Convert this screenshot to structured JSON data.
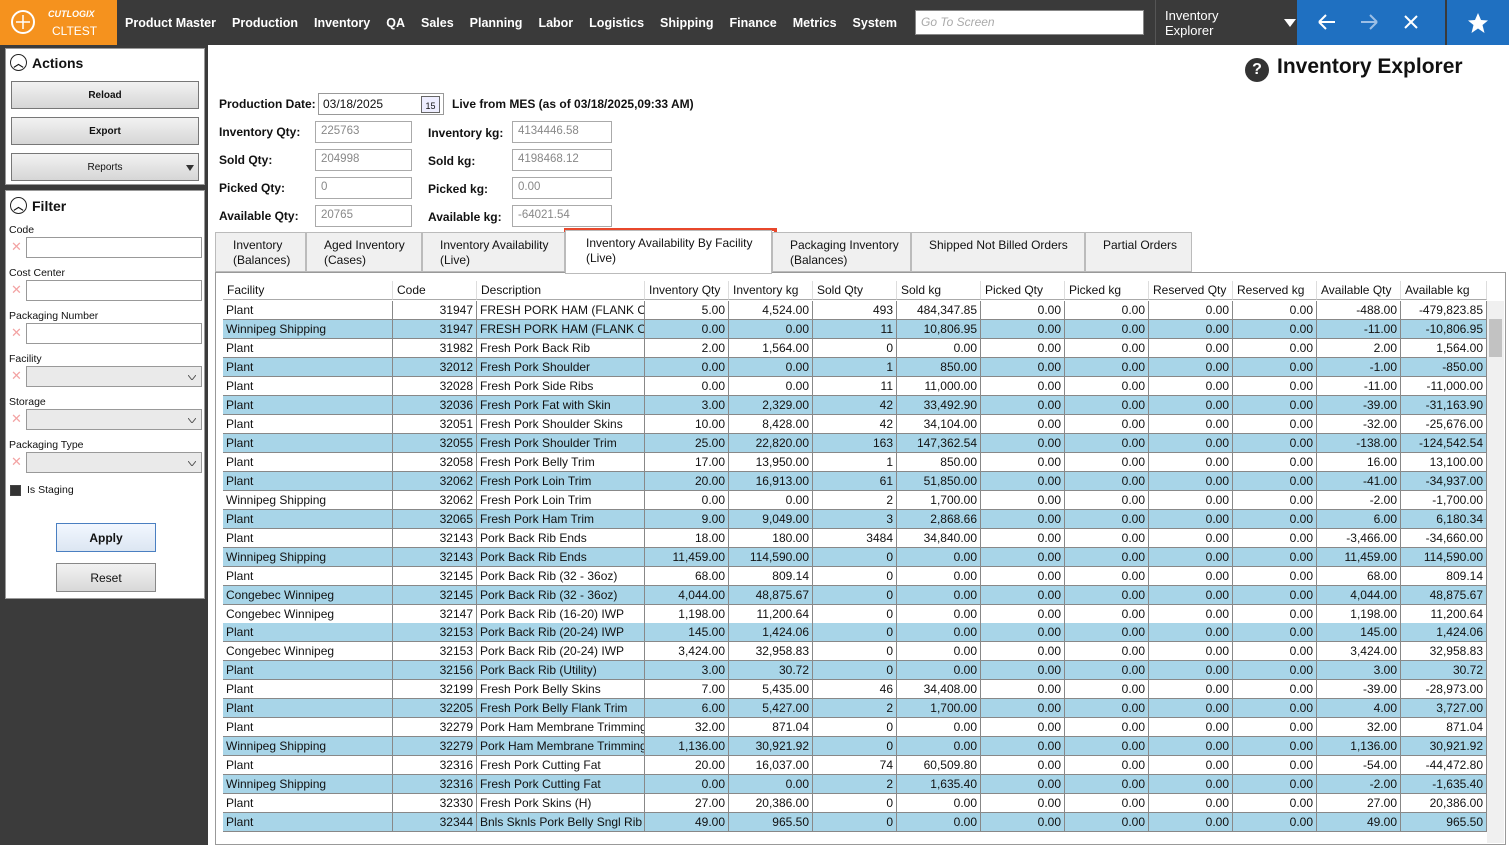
{
  "topbar": {
    "logo_brand": "CUTLOGIX",
    "logo_env": "CLTEST",
    "nav": [
      "Product Master",
      "Production",
      "Inventory",
      "QA",
      "Sales",
      "Planning",
      "Labor",
      "Logistics",
      "Shipping",
      "Finance",
      "Metrics",
      "System"
    ],
    "search_placeholder": "Go To Screen",
    "screen_select": "Inventory Explorer"
  },
  "sidebar": {
    "actions_title": "Actions",
    "buttons": [
      "Reload",
      "Export"
    ],
    "reports": "Reports",
    "filter_title": "Filter",
    "filters": [
      "Code",
      "Cost Center",
      "Packaging Number",
      "Facility",
      "Storage",
      "Packaging Type"
    ],
    "is_staging": "Is Staging",
    "apply": "Apply",
    "reset": "Reset"
  },
  "header": {
    "title": "Inventory Explorer",
    "help_icon": "?",
    "production_date_label": "Production Date:",
    "production_date": "03/18/2025",
    "calendar_icon": "15",
    "live_note": "Live from MES (as of 03/18/2025,09:33 AM)"
  },
  "summary": [
    {
      "label": "Inventory Qty:",
      "value": "225763",
      "label2": "Inventory kg:",
      "value2": "4134446.58"
    },
    {
      "label": "Sold Qty:",
      "value": "204998",
      "label2": "Sold kg:",
      "value2": "4198468.12"
    },
    {
      "label": "Picked Qty:",
      "value": "0",
      "label2": "Picked kg:",
      "value2": "0.00"
    },
    {
      "label": "Available Qty:",
      "value": "20765",
      "label2": "Available kg:",
      "value2": "-64021.54"
    }
  ],
  "tabs": [
    [
      "Inventory",
      "(Balances)"
    ],
    [
      "Aged Inventory",
      "(Cases)"
    ],
    [
      "Inventory Availability",
      "(Live)"
    ],
    [
      "Inventory Availability By Facility",
      "(Live)"
    ],
    [
      "Packaging Inventory",
      "(Balances)"
    ],
    [
      "Shipped Not Billed Orders"
    ],
    [
      "Partial Orders"
    ]
  ],
  "table": {
    "columns": [
      "Facility",
      "Code",
      "Description",
      "Inventory Qty",
      "Inventory kg",
      "Sold Qty",
      "Sold kg",
      "Picked Qty",
      "Picked kg",
      "Reserved Qty",
      "Reserved kg",
      "Available Qty",
      "Available kg"
    ],
    "rows": [
      [
        "Plant",
        "31947",
        "FRESH PORK HAM (FLANK ON",
        "5.00",
        "4,524.00",
        "493",
        "484,347.85",
        "0.00",
        "0.00",
        "0.00",
        "0.00",
        "-488.00",
        "-479,823.85"
      ],
      [
        "Winnipeg Shipping",
        "31947",
        "FRESH PORK HAM (FLANK ON",
        "0.00",
        "0.00",
        "11",
        "10,806.95",
        "0.00",
        "0.00",
        "0.00",
        "0.00",
        "-11.00",
        "-10,806.95"
      ],
      [
        "Plant",
        "31982",
        "Fresh Pork Back Rib",
        "2.00",
        "1,564.00",
        "0",
        "0.00",
        "0.00",
        "0.00",
        "0.00",
        "0.00",
        "2.00",
        "1,564.00"
      ],
      [
        "Plant",
        "32012",
        "Fresh Pork Shoulder",
        "0.00",
        "0.00",
        "1",
        "850.00",
        "0.00",
        "0.00",
        "0.00",
        "0.00",
        "-1.00",
        "-850.00"
      ],
      [
        "Plant",
        "32028",
        "Fresh Pork Side Ribs",
        "0.00",
        "0.00",
        "11",
        "11,000.00",
        "0.00",
        "0.00",
        "0.00",
        "0.00",
        "-11.00",
        "-11,000.00"
      ],
      [
        "Plant",
        "32036",
        "Fresh Pork Fat with Skin",
        "3.00",
        "2,329.00",
        "42",
        "33,492.90",
        "0.00",
        "0.00",
        "0.00",
        "0.00",
        "-39.00",
        "-31,163.90"
      ],
      [
        "Plant",
        "32051",
        "Fresh Pork Shoulder Skins",
        "10.00",
        "8,428.00",
        "42",
        "34,104.00",
        "0.00",
        "0.00",
        "0.00",
        "0.00",
        "-32.00",
        "-25,676.00"
      ],
      [
        "Plant",
        "32055",
        "Fresh Pork Shoulder Trim",
        "25.00",
        "22,820.00",
        "163",
        "147,362.54",
        "0.00",
        "0.00",
        "0.00",
        "0.00",
        "-138.00",
        "-124,542.54"
      ],
      [
        "Plant",
        "32058",
        "Fresh Pork Belly Trim",
        "17.00",
        "13,950.00",
        "1",
        "850.00",
        "0.00",
        "0.00",
        "0.00",
        "0.00",
        "16.00",
        "13,100.00"
      ],
      [
        "Plant",
        "32062",
        "Fresh Pork Loin Trim",
        "20.00",
        "16,913.00",
        "61",
        "51,850.00",
        "0.00",
        "0.00",
        "0.00",
        "0.00",
        "-41.00",
        "-34,937.00"
      ],
      [
        "Winnipeg Shipping",
        "32062",
        "Fresh Pork Loin Trim",
        "0.00",
        "0.00",
        "2",
        "1,700.00",
        "0.00",
        "0.00",
        "0.00",
        "0.00",
        "-2.00",
        "-1,700.00"
      ],
      [
        "Plant",
        "32065",
        "Fresh Pork Ham Trim",
        "9.00",
        "9,049.00",
        "3",
        "2,868.66",
        "0.00",
        "0.00",
        "0.00",
        "0.00",
        "6.00",
        "6,180.34"
      ],
      [
        "Plant",
        "32143",
        "Pork Back Rib Ends",
        "18.00",
        "180.00",
        "3484",
        "34,840.00",
        "0.00",
        "0.00",
        "0.00",
        "0.00",
        "-3,466.00",
        "-34,660.00"
      ],
      [
        "Winnipeg Shipping",
        "32143",
        "Pork Back Rib Ends",
        "11,459.00",
        "114,590.00",
        "0",
        "0.00",
        "0.00",
        "0.00",
        "0.00",
        "0.00",
        "11,459.00",
        "114,590.00"
      ],
      [
        "Plant",
        "32145",
        "Pork Back Rib (32 - 36oz)",
        "68.00",
        "809.14",
        "0",
        "0.00",
        "0.00",
        "0.00",
        "0.00",
        "0.00",
        "68.00",
        "809.14"
      ],
      [
        "Congebec Winnipeg",
        "32145",
        "Pork Back Rib (32 - 36oz)",
        "4,044.00",
        "48,875.67",
        "0",
        "0.00",
        "0.00",
        "0.00",
        "0.00",
        "0.00",
        "4,044.00",
        "48,875.67"
      ],
      [
        "Congebec Winnipeg",
        "32147",
        "Pork Back Rib (16-20) IWP",
        "1,198.00",
        "11,200.64",
        "0",
        "0.00",
        "0.00",
        "0.00",
        "0.00",
        "0.00",
        "1,198.00",
        "11,200.64"
      ],
      [
        "Plant",
        "32153",
        "Pork Back Rib (20-24) IWP",
        "145.00",
        "1,424.06",
        "0",
        "0.00",
        "0.00",
        "0.00",
        "0.00",
        "0.00",
        "145.00",
        "1,424.06"
      ],
      [
        "Congebec Winnipeg",
        "32153",
        "Pork Back Rib (20-24) IWP",
        "3,424.00",
        "32,958.83",
        "0",
        "0.00",
        "0.00",
        "0.00",
        "0.00",
        "0.00",
        "3,424.00",
        "32,958.83"
      ],
      [
        "Plant",
        "32156",
        "Pork Back Rib (Utility)",
        "3.00",
        "30.72",
        "0",
        "0.00",
        "0.00",
        "0.00",
        "0.00",
        "0.00",
        "3.00",
        "30.72"
      ],
      [
        "Plant",
        "32199",
        "Fresh Pork Belly Skins",
        "7.00",
        "5,435.00",
        "46",
        "34,408.00",
        "0.00",
        "0.00",
        "0.00",
        "0.00",
        "-39.00",
        "-28,973.00"
      ],
      [
        "Plant",
        "32205",
        "Fresh Pork Belly Flank Trim",
        "6.00",
        "5,427.00",
        "2",
        "1,700.00",
        "0.00",
        "0.00",
        "0.00",
        "0.00",
        "4.00",
        "3,727.00"
      ],
      [
        "Plant",
        "32279",
        "Pork Ham Membrane Trimming",
        "32.00",
        "871.04",
        "0",
        "0.00",
        "0.00",
        "0.00",
        "0.00",
        "0.00",
        "32.00",
        "871.04"
      ],
      [
        "Winnipeg Shipping",
        "32279",
        "Pork Ham Membrane Trimming",
        "1,136.00",
        "30,921.92",
        "0",
        "0.00",
        "0.00",
        "0.00",
        "0.00",
        "0.00",
        "1,136.00",
        "30,921.92"
      ],
      [
        "Plant",
        "32316",
        "Fresh Pork Cutting Fat",
        "20.00",
        "16,037.00",
        "74",
        "60,509.80",
        "0.00",
        "0.00",
        "0.00",
        "0.00",
        "-54.00",
        "-44,472.80"
      ],
      [
        "Winnipeg Shipping",
        "32316",
        "Fresh Pork Cutting Fat",
        "0.00",
        "0.00",
        "2",
        "1,635.40",
        "0.00",
        "0.00",
        "0.00",
        "0.00",
        "-2.00",
        "-1,635.40"
      ],
      [
        "Plant",
        "32330",
        "Fresh Pork Skins (H)",
        "27.00",
        "20,386.00",
        "0",
        "0.00",
        "0.00",
        "0.00",
        "0.00",
        "0.00",
        "27.00",
        "20,386.00"
      ],
      [
        "Plant",
        "32344",
        "Bnls Sknls Pork Belly Sngl Rib",
        "49.00",
        "965.50",
        "0",
        "0.00",
        "0.00",
        "0.00",
        "0.00",
        "0.00",
        "49.00",
        "965.50"
      ]
    ]
  }
}
